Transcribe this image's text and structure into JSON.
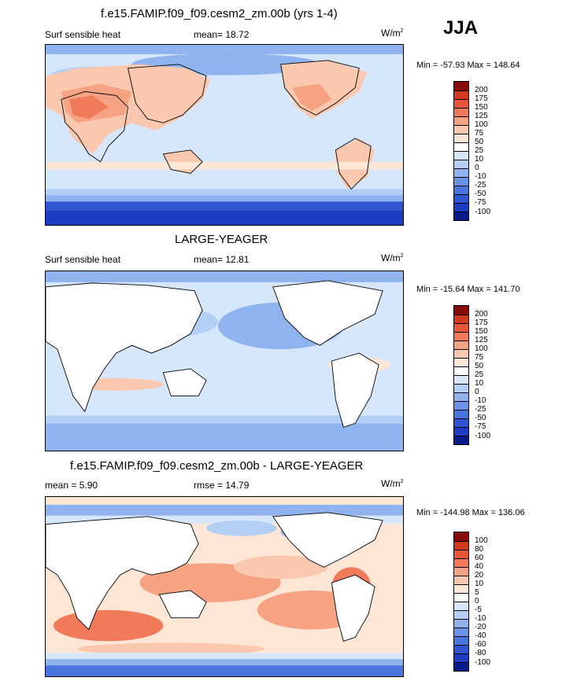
{
  "season": "JJA",
  "units_main": "W/m",
  "units_sup": "2",
  "panels": [
    {
      "title": "f.e15.FAMIP.f09_f09.cesm2_zm.00b (yrs 1-4)",
      "left_label": "Surf sensible heat",
      "center_label": "mean=  18.72",
      "minmax": "Min = -57.93 Max = 148.64"
    },
    {
      "title": "LARGE-YEAGER",
      "left_label": "Surf sensible heat",
      "center_label": "mean=  12.81",
      "minmax": "Min = -15.64 Max = 141.70"
    },
    {
      "title": "f.e15.FAMIP.f09_f09.cesm2_zm.00b - LARGE-YEAGER",
      "left_label": "mean =   5.90",
      "center_label": "rmse =  14.79",
      "minmax": "Min = -144.98 Max = 136.06"
    }
  ],
  "colors": {
    "dark_red": "#8b0a0a",
    "red": "#d23a1e",
    "red2": "#e7553a",
    "orange": "#f07a5a",
    "salmon": "#f6a383",
    "peach": "#fac8ae",
    "cream": "#fde6d6",
    "white": "#ffffff",
    "pale_blue": "#d7e7fb",
    "light_blue": "#b4cff5",
    "blue1": "#8eb3ef",
    "blue2": "#6b94e8",
    "blue3": "#4a74de",
    "blue4": "#2f55d2",
    "blue5": "#1d3dc2",
    "navy": "#0a1b8c"
  },
  "chart_data": [
    {
      "type": "heatmap",
      "title": "f.e15.FAMIP.f09_f09.cesm2_zm.00b (yrs 1-4)",
      "variable": "Surf sensible heat",
      "units": "W/m2",
      "mean": 18.72,
      "min": -57.93,
      "max": 148.64,
      "colorbar_levels": [
        "200",
        "175",
        "150",
        "125",
        "100",
        "75",
        "50",
        "25",
        "10",
        "0",
        "-10",
        "-25",
        "-50",
        "-75",
        "-100"
      ]
    },
    {
      "type": "heatmap",
      "title": "LARGE-YEAGER",
      "variable": "Surf sensible heat",
      "units": "W/m2",
      "mean": 12.81,
      "min": -15.64,
      "max": 141.7,
      "colorbar_levels": [
        "200",
        "175",
        "150",
        "125",
        "100",
        "75",
        "50",
        "25",
        "10",
        "0",
        "-10",
        "-25",
        "-50",
        "-75",
        "-100"
      ]
    },
    {
      "type": "heatmap",
      "title": "f.e15.FAMIP.f09_f09.cesm2_zm.00b - LARGE-YEAGER",
      "units": "W/m2",
      "mean": 5.9,
      "rmse": 14.79,
      "min": -144.98,
      "max": 136.06,
      "colorbar_levels": [
        "100",
        "80",
        "60",
        "40",
        "20",
        "10",
        "5",
        "0",
        "-5",
        "-10",
        "-20",
        "-40",
        "-60",
        "-80",
        "-100"
      ]
    }
  ]
}
